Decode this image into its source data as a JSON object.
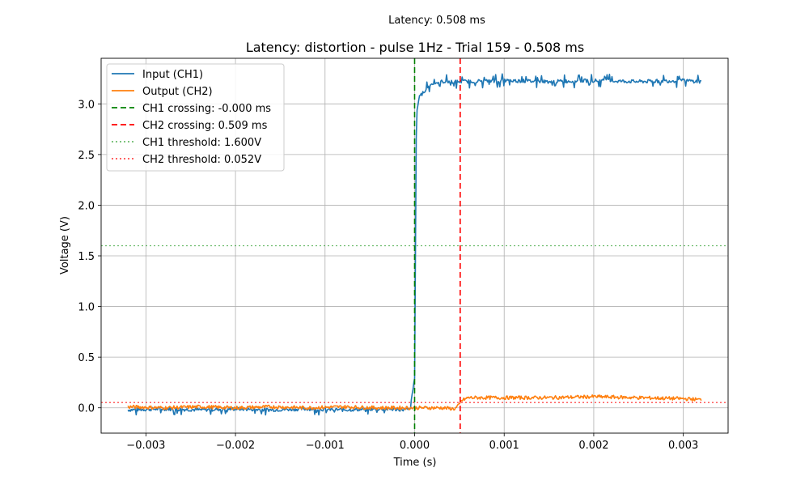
{
  "figure": {
    "suptitle": "Latency: 0.508 ms"
  },
  "chart_data": {
    "type": "line",
    "title": "Latency: distortion - pulse 1Hz - Trial 159 - 0.508 ms",
    "xlabel": "Time (s)",
    "ylabel": "Voltage (V)",
    "xlim": [
      -0.0035,
      0.0035
    ],
    "ylim": [
      -0.25,
      3.45
    ],
    "grid": true,
    "legend_position": "top-left",
    "x_ticks": [
      {
        "value": -0.003,
        "label": "−0.003"
      },
      {
        "value": -0.002,
        "label": "−0.002"
      },
      {
        "value": -0.001,
        "label": "−0.001"
      },
      {
        "value": 0.0,
        "label": "0.000"
      },
      {
        "value": 0.001,
        "label": "0.001"
      },
      {
        "value": 0.002,
        "label": "0.002"
      },
      {
        "value": 0.003,
        "label": "0.003"
      }
    ],
    "y_ticks": [
      {
        "value": 0.0,
        "label": "0.0"
      },
      {
        "value": 0.5,
        "label": "0.5"
      },
      {
        "value": 1.0,
        "label": "1.0"
      },
      {
        "value": 1.5,
        "label": "1.5"
      },
      {
        "value": 2.0,
        "label": "2.0"
      },
      {
        "value": 2.5,
        "label": "2.5"
      },
      {
        "value": 3.0,
        "label": "3.0"
      }
    ],
    "series": [
      {
        "name": "Input (CH1)",
        "color": "#1f77b4",
        "style": "solid",
        "x": [
          -0.0032,
          -0.0028,
          -0.0024,
          -0.002,
          -0.0016,
          -0.0012,
          -0.0008,
          -0.0004,
          -5e-05,
          0.0,
          2e-05,
          5e-05,
          0.0001,
          0.00015,
          0.0002,
          0.0003,
          0.0005,
          0.001,
          0.0015,
          0.002,
          0.0025,
          0.003,
          0.0032
        ],
        "y": [
          -0.02,
          -0.01,
          -0.02,
          -0.01,
          -0.02,
          -0.01,
          -0.02,
          -0.01,
          -0.02,
          0.3,
          2.9,
          3.06,
          3.12,
          3.17,
          3.2,
          3.22,
          3.22,
          3.23,
          3.22,
          3.23,
          3.22,
          3.23,
          3.22
        ]
      },
      {
        "name": "Output (CH2)",
        "color": "#ff7f0e",
        "style": "solid",
        "x": [
          -0.0032,
          -0.0028,
          -0.0024,
          -0.002,
          -0.0016,
          -0.0012,
          -0.0008,
          -0.0004,
          0.0,
          0.0003,
          0.00045,
          0.0005,
          0.00052,
          0.0006,
          0.001,
          0.0015,
          0.002,
          0.0025,
          0.003,
          0.0032
        ],
        "y": [
          0.01,
          0.0,
          0.01,
          0.0,
          0.01,
          0.0,
          0.01,
          0.0,
          0.0,
          0.0,
          -0.01,
          0.03,
          0.07,
          0.1,
          0.1,
          0.1,
          0.11,
          0.1,
          0.09,
          0.08
        ]
      }
    ],
    "vlines": [
      {
        "name": "CH1 crossing: -0.000 ms",
        "x": -1e-07,
        "color": "#008000",
        "style": "dashed"
      },
      {
        "name": "CH2 crossing: 0.509 ms",
        "x": 0.000509,
        "color": "#ff0000",
        "style": "dashed"
      }
    ],
    "hlines": [
      {
        "name": "CH1 threshold: 1.600V",
        "y": 1.6,
        "color": "#2ca02c",
        "style": "dotted"
      },
      {
        "name": "CH2 threshold: 0.052V",
        "y": 0.052,
        "color": "#ff0000",
        "style": "dotted"
      }
    ]
  }
}
